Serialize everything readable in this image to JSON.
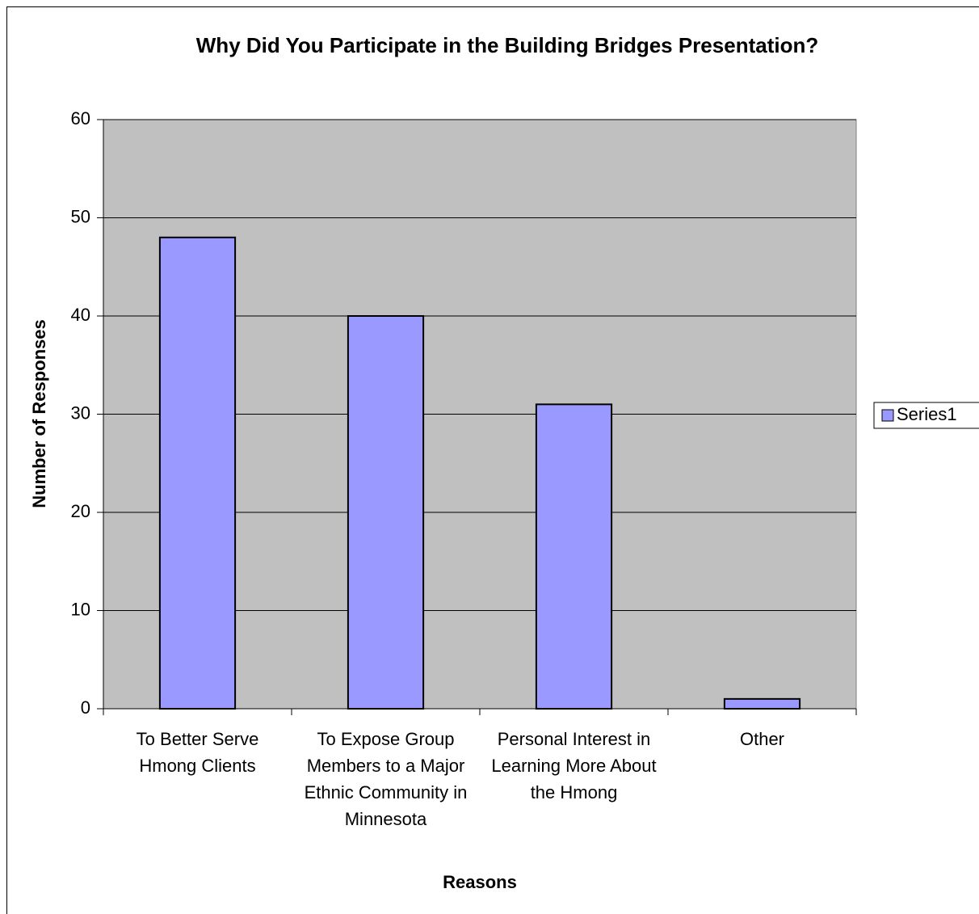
{
  "chart_data": {
    "type": "bar",
    "title": "Why Did You Participate in the Building Bridges Presentation?",
    "x_label": "Reasons",
    "y_label": "Number of Responses",
    "categories": [
      "To Better Serve Hmong Clients",
      "To Expose Group Members to a Major Ethnic Community in Minnesota",
      "Personal Interest in Learning More About the Hmong",
      "Other"
    ],
    "series": [
      {
        "name": "Series1",
        "color": "#9999ff",
        "values": [
          48,
          40,
          31,
          1
        ]
      }
    ],
    "ylim": [
      0,
      60
    ],
    "yticks": [
      0,
      10,
      20,
      30,
      40,
      50,
      60
    ],
    "grid": true,
    "legend": "right"
  }
}
